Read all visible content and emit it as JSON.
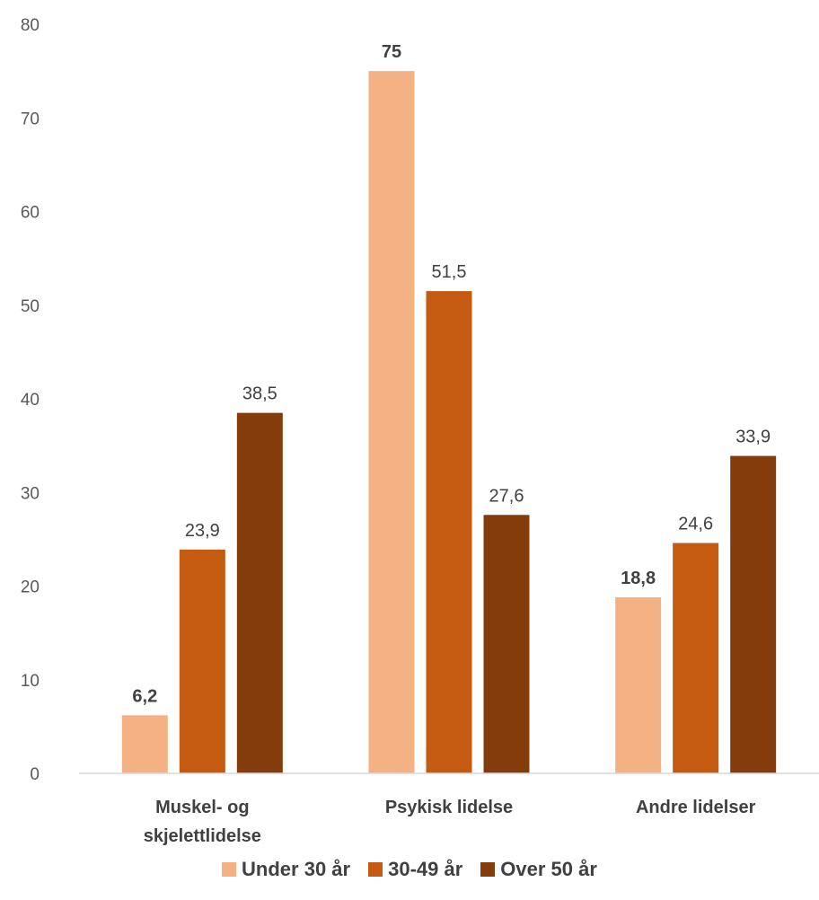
{
  "chart_data": {
    "type": "bar",
    "title": "",
    "xlabel": "",
    "ylabel": "",
    "ylim": [
      0,
      80
    ],
    "yticks": [
      0,
      10,
      20,
      30,
      40,
      50,
      60,
      70,
      80
    ],
    "categories": [
      [
        "Muskel- og",
        "skjelettlidelse"
      ],
      [
        "Psykisk lidelse"
      ],
      [
        "Andre lidelser"
      ]
    ],
    "series": [
      {
        "name": "Under 30 år",
        "color": "#F4B183",
        "values": [
          6.2,
          75,
          18.8
        ],
        "labels": [
          "6,2",
          "75",
          "18,8"
        ],
        "label_bold": true
      },
      {
        "name": "30-49 år",
        "color": "#C55A11",
        "values": [
          23.9,
          51.5,
          24.6
        ],
        "labels": [
          "23,9",
          "51,5",
          "24,6"
        ],
        "label_bold": false
      },
      {
        "name": "Over 50 år",
        "color": "#843C0C",
        "values": [
          38.5,
          27.6,
          33.9
        ],
        "labels": [
          "38,5",
          "27,6",
          "33,9"
        ],
        "label_bold": false
      }
    ],
    "grid": false,
    "legend": "bottom"
  }
}
